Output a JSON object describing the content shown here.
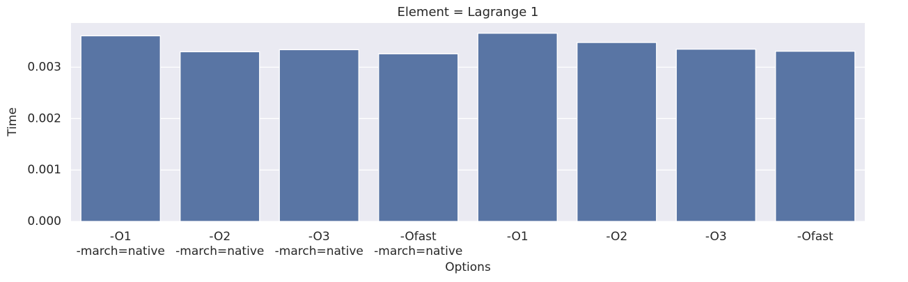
{
  "chart_data": {
    "type": "bar",
    "title": "Element = Lagrange 1",
    "xlabel": "Options",
    "ylabel": "Time",
    "categories": [
      [
        "-O1",
        "-march=native"
      ],
      [
        "-O2",
        "-march=native"
      ],
      [
        "-O3",
        "-march=native"
      ],
      [
        "-Ofast",
        "-march=native"
      ],
      [
        "-O1"
      ],
      [
        "-O2"
      ],
      [
        "-O3"
      ],
      [
        "-Ofast"
      ]
    ],
    "values": [
      0.00361,
      0.0033,
      0.00334,
      0.00326,
      0.00366,
      0.00348,
      0.00335,
      0.00331
    ],
    "color": "#5975a4",
    "ylim": [
      0,
      0.00386
    ],
    "yticks": [
      {
        "value": 0,
        "label": "0.000"
      },
      {
        "value": 0.001,
        "label": "0.001"
      },
      {
        "value": 0.002,
        "label": "0.002"
      },
      {
        "value": 0.003,
        "label": "0.003"
      }
    ],
    "grid": true
  }
}
